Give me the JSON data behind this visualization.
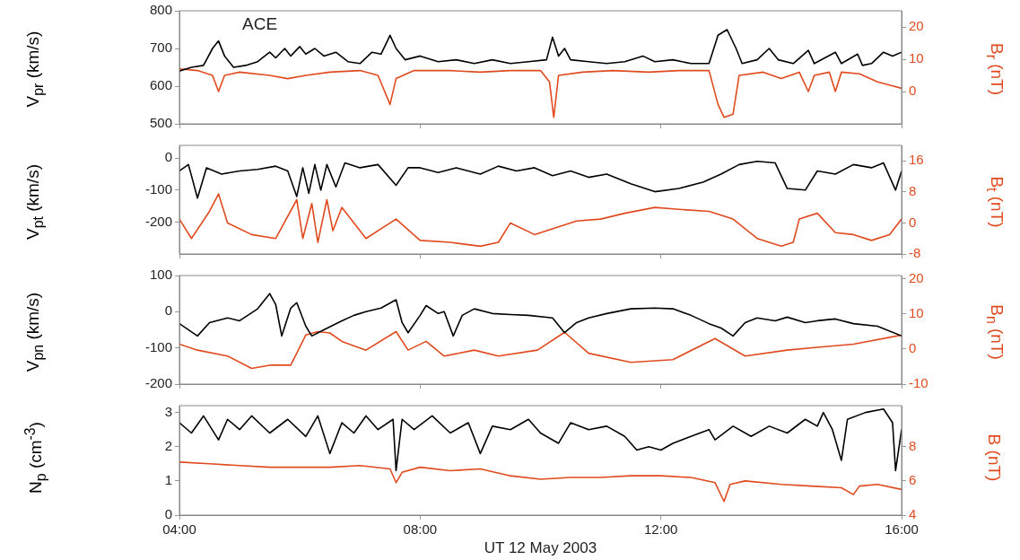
{
  "chart_data": [
    {
      "type": "line",
      "ylabel": "V$_{pr}$ (km/s)",
      "y2label": "B$_{r}$ (nT)",
      "annotations": [
        "ACE"
      ],
      "tick_labels": "y",
      "xlim": [
        4,
        16
      ],
      "xticks": [
        4,
        8,
        12,
        16
      ],
      "ylim": [
        500,
        800
      ],
      "yticks": [
        500,
        600,
        700,
        800
      ],
      "y2lim": [
        -10,
        25
      ],
      "y2ticks": [
        0,
        10,
        20
      ],
      "series": [
        {
          "color": "#000000",
          "x": [
            4.0,
            4.2,
            4.4,
            4.55,
            4.65,
            4.75,
            4.9,
            5.1,
            5.3,
            5.5,
            5.6,
            5.75,
            5.85,
            6.0,
            6.1,
            6.25,
            6.4,
            6.6,
            6.8,
            7.0,
            7.2,
            7.35,
            7.5,
            7.6,
            7.75,
            8.0,
            8.3,
            8.6,
            8.9,
            9.2,
            9.5,
            9.8,
            10.1,
            10.2,
            10.3,
            10.4,
            10.5,
            10.8,
            11.1,
            11.4,
            11.7,
            11.9,
            12.2,
            12.5,
            12.8,
            12.95,
            13.1,
            13.25,
            13.35,
            13.6,
            13.8,
            13.95,
            14.2,
            14.45,
            14.55,
            14.9,
            15.0,
            15.27,
            15.35,
            15.5,
            15.7,
            15.85,
            16.0
          ],
          "values": [
            640,
            650,
            655,
            700,
            720,
            680,
            650,
            655,
            665,
            690,
            675,
            700,
            680,
            705,
            685,
            700,
            680,
            690,
            665,
            660,
            690,
            685,
            735,
            700,
            670,
            680,
            665,
            670,
            660,
            670,
            660,
            665,
            670,
            730,
            680,
            700,
            670,
            665,
            660,
            665,
            680,
            665,
            670,
            660,
            660,
            735,
            750,
            700,
            660,
            670,
            700,
            670,
            660,
            695,
            660,
            690,
            660,
            685,
            655,
            660,
            690,
            680,
            690
          ]
        },
        {
          "color": "#e04a1e",
          "axis": "y2",
          "x": [
            4.0,
            4.3,
            4.55,
            4.65,
            4.75,
            5.0,
            5.5,
            5.8,
            6.1,
            6.5,
            7.0,
            7.3,
            7.5,
            7.6,
            7.9,
            8.5,
            9.0,
            9.5,
            10.0,
            10.15,
            10.22,
            10.3,
            10.7,
            11.2,
            11.8,
            12.3,
            12.8,
            12.95,
            13.05,
            13.2,
            13.3,
            13.7,
            14.0,
            14.3,
            14.45,
            14.55,
            14.8,
            14.9,
            15.0,
            15.3,
            15.6,
            15.8,
            16.0
          ],
          "values": [
            7,
            6.5,
            5,
            0,
            5,
            6,
            5,
            4,
            5,
            6,
            6.5,
            5,
            -4,
            4,
            6.5,
            6.5,
            6,
            6.5,
            6.5,
            3,
            -8,
            5,
            6,
            6.5,
            6,
            6.5,
            6.5,
            -4,
            -8,
            -7,
            5,
            6,
            4,
            6,
            0,
            5,
            6,
            0,
            6,
            5.5,
            3,
            2,
            1
          ]
        }
      ]
    },
    {
      "type": "line",
      "ylabel": "V$_{pt}$ (km/s)",
      "y2label": "B$_{t}$ (nT)",
      "tick_labels": "y",
      "xlim": [
        4,
        16
      ],
      "xticks": [
        4,
        8,
        12,
        16
      ],
      "ylim": [
        -300,
        40
      ],
      "yticks": [
        -200,
        -100,
        0
      ],
      "y2lim": [
        -8,
        20
      ],
      "y2ticks": [
        -8,
        0,
        8,
        16
      ],
      "series": [
        {
          "color": "#000000",
          "x": [
            4.0,
            4.15,
            4.3,
            4.45,
            4.7,
            5.0,
            5.3,
            5.6,
            5.8,
            5.95,
            6.05,
            6.15,
            6.25,
            6.35,
            6.45,
            6.6,
            6.75,
            7.0,
            7.3,
            7.6,
            7.8,
            8.0,
            8.3,
            8.6,
            9.0,
            9.3,
            9.6,
            9.9,
            10.2,
            10.5,
            10.8,
            11.1,
            11.5,
            11.9,
            12.3,
            12.7,
            13.0,
            13.3,
            13.6,
            13.9,
            14.1,
            14.4,
            14.6,
            14.9,
            15.2,
            15.5,
            15.7,
            15.9,
            16.0
          ],
          "values": [
            -40,
            -20,
            -125,
            -30,
            -50,
            -40,
            -35,
            -25,
            -40,
            -120,
            -30,
            -110,
            -20,
            -100,
            -20,
            -90,
            -15,
            -30,
            -20,
            -85,
            -30,
            -30,
            -45,
            -30,
            -50,
            -25,
            -40,
            -30,
            -55,
            -40,
            -60,
            -50,
            -80,
            -105,
            -95,
            -75,
            -50,
            -20,
            -10,
            -15,
            -95,
            -100,
            -40,
            -50,
            -20,
            -30,
            -15,
            -100,
            -40
          ]
        },
        {
          "color": "#e04a1e",
          "axis": "y2",
          "x": [
            4.0,
            4.2,
            4.5,
            4.65,
            4.8,
            5.2,
            5.6,
            5.95,
            6.05,
            6.2,
            6.3,
            6.45,
            6.55,
            6.7,
            7.1,
            7.6,
            8.0,
            8.5,
            9.0,
            9.3,
            9.5,
            9.9,
            10.6,
            11.0,
            11.4,
            11.9,
            12.3,
            12.8,
            13.2,
            13.6,
            14.0,
            14.2,
            14.3,
            14.6,
            14.9,
            15.2,
            15.5,
            15.8,
            16.0
          ],
          "values": [
            1,
            -4,
            3,
            7.5,
            0,
            -3,
            -4,
            6,
            -4,
            5,
            -5,
            6,
            -2,
            4,
            -4,
            1,
            -4.5,
            -5,
            -6,
            -5,
            0,
            -3,
            0.5,
            1,
            2.5,
            4,
            3.5,
            3,
            1,
            -4,
            -6,
            -5,
            1,
            2.5,
            -2.5,
            -3,
            -4.5,
            -3,
            1
          ]
        }
      ]
    },
    {
      "type": "line",
      "ylabel": "V$_{pn}$ (km/s)",
      "y2label": "B$_{n}$ (nT)",
      "tick_labels": "y",
      "xlim": [
        4,
        16
      ],
      "xticks": [
        4,
        8,
        12,
        16
      ],
      "ylim": [
        -200,
        100
      ],
      "yticks": [
        -200,
        -100,
        0,
        100
      ],
      "y2lim": [
        -10,
        21
      ],
      "y2ticks": [
        -10,
        0,
        10,
        20
      ],
      "series": [
        {
          "color": "#000000",
          "x": [
            4.0,
            4.3,
            4.5,
            4.8,
            5.0,
            5.3,
            5.5,
            5.6,
            5.7,
            5.85,
            5.95,
            6.1,
            6.2,
            6.4,
            6.7,
            6.9,
            7.1,
            7.35,
            7.6,
            7.7,
            7.8,
            8.0,
            8.1,
            8.3,
            8.4,
            8.55,
            8.7,
            8.9,
            9.2,
            9.5,
            9.8,
            10.2,
            10.4,
            10.6,
            10.8,
            11.1,
            11.5,
            11.9,
            12.2,
            12.5,
            12.8,
            13.0,
            13.2,
            13.4,
            13.6,
            13.9,
            14.1,
            14.4,
            14.6,
            14.9,
            15.2,
            15.6,
            16.0
          ],
          "values": [
            -33,
            -67,
            -30,
            -17,
            -25,
            8,
            50,
            20,
            -67,
            10,
            25,
            -40,
            -67,
            -50,
            -25,
            -10,
            0,
            10,
            33,
            -30,
            -58,
            -10,
            17,
            -5,
            0,
            -67,
            -10,
            8,
            -5,
            -8,
            -10,
            -17,
            -58,
            -30,
            -17,
            -5,
            8,
            10,
            8,
            -10,
            -33,
            -45,
            -67,
            -30,
            -17,
            -25,
            -15,
            -30,
            -25,
            -20,
            -33,
            -40,
            -67
          ]
        },
        {
          "color": "#e04a1e",
          "axis": "y2",
          "x": [
            4.0,
            4.3,
            4.8,
            5.2,
            5.5,
            5.85,
            6.1,
            6.3,
            6.5,
            6.7,
            7.1,
            7.6,
            7.8,
            8.1,
            8.4,
            8.9,
            9.3,
            9.95,
            10.4,
            10.8,
            11.5,
            12.2,
            12.9,
            13.4,
            14.1,
            14.6,
            15.2,
            16.0
          ],
          "values": [
            1.4,
            -0.3,
            -2,
            -5.5,
            -4.6,
            -4.6,
            4,
            5,
            4.6,
            2.2,
            -0.3,
            5,
            -0.3,
            2.2,
            -2,
            -0.3,
            -2,
            -0.3,
            4.8,
            -1.2,
            -3.8,
            -3,
            3,
            -2,
            -0.3,
            0.5,
            1.4,
            4
          ]
        }
      ]
    },
    {
      "type": "line",
      "ylabel": "N$_{p}$ (cm$^{-3}$)",
      "y2label": "B (nT)",
      "xlabel": "UT 12 May 2003",
      "xlim": [
        4,
        16
      ],
      "xticks": [
        {
          "value": 4,
          "label": "04:00"
        },
        {
          "value": 8,
          "label": "08:00"
        },
        {
          "value": 12,
          "label": "12:00"
        },
        {
          "value": 16,
          "label": "16:00"
        }
      ],
      "ylim": [
        0,
        3.2
      ],
      "yticks": [
        0,
        1,
        2,
        3
      ],
      "y2lim": [
        4,
        10.4
      ],
      "y2ticks": [
        4,
        6,
        8
      ],
      "series": [
        {
          "color": "#000000",
          "x": [
            4.0,
            4.2,
            4.4,
            4.65,
            4.8,
            5.0,
            5.2,
            5.5,
            5.8,
            6.1,
            6.3,
            6.5,
            6.7,
            6.9,
            7.1,
            7.3,
            7.55,
            7.6,
            7.7,
            7.9,
            8.2,
            8.5,
            8.8,
            9.0,
            9.2,
            9.5,
            9.8,
            10.0,
            10.3,
            10.5,
            10.8,
            11.1,
            11.4,
            11.6,
            11.8,
            12.0,
            12.2,
            12.5,
            12.8,
            12.9,
            13.2,
            13.5,
            13.8,
            14.1,
            14.4,
            14.6,
            14.7,
            14.85,
            15.0,
            15.1,
            15.4,
            15.7,
            15.85,
            15.9,
            16.0
          ],
          "values": [
            2.7,
            2.4,
            2.9,
            2.2,
            2.8,
            2.5,
            2.9,
            2.4,
            2.8,
            2.3,
            2.9,
            1.8,
            2.7,
            2.4,
            2.9,
            2.5,
            2.8,
            1.3,
            2.8,
            2.5,
            2.9,
            2.4,
            2.7,
            1.8,
            2.6,
            2.5,
            2.8,
            2.4,
            2.1,
            2.7,
            2.5,
            2.6,
            2.3,
            1.9,
            2.0,
            1.9,
            2.1,
            2.3,
            2.5,
            2.2,
            2.6,
            2.3,
            2.6,
            2.4,
            2.8,
            2.6,
            3.0,
            2.5,
            1.6,
            2.8,
            3.0,
            3.1,
            2.7,
            1.3,
            2.5
          ]
        },
        {
          "color": "#e04a1e",
          "axis": "y2",
          "x": [
            4.0,
            4.5,
            5.0,
            5.5,
            6.0,
            6.5,
            7.0,
            7.5,
            7.6,
            7.7,
            8.0,
            8.5,
            9.0,
            9.5,
            10.0,
            10.5,
            11.0,
            11.5,
            12.0,
            12.5,
            12.9,
            13.05,
            13.15,
            13.4,
            14.0,
            14.5,
            15.0,
            15.2,
            15.3,
            15.6,
            16.0
          ],
          "values": [
            7.1,
            7.0,
            6.9,
            6.8,
            6.8,
            6.8,
            6.9,
            6.7,
            5.9,
            6.5,
            6.8,
            6.6,
            6.7,
            6.3,
            6.1,
            6.2,
            6.2,
            6.3,
            6.3,
            6.2,
            5.9,
            4.8,
            5.8,
            6.0,
            5.8,
            5.7,
            5.6,
            5.2,
            5.7,
            5.8,
            5.5
          ]
        }
      ]
    }
  ]
}
